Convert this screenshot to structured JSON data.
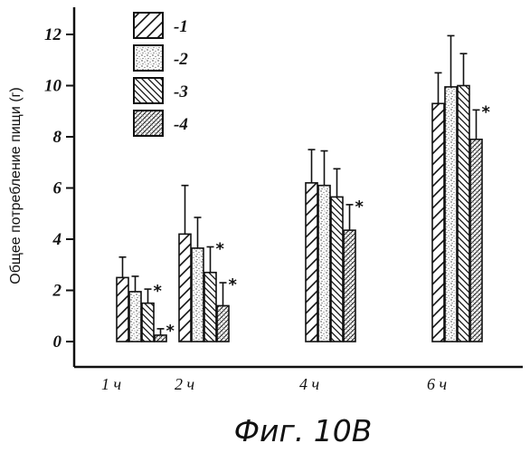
{
  "chart_data": {
    "type": "bar",
    "title": "",
    "ylabel": "Общее потребление пищи (г)",
    "xlabel": "",
    "ylim": [
      0,
      13
    ],
    "yticks": [
      0,
      2,
      4,
      6,
      8,
      10,
      12
    ],
    "categories": [
      "1 ч",
      "2 ч",
      "4 ч",
      "6 ч"
    ],
    "series": [
      {
        "name": "-1",
        "pattern": "diagonal-up",
        "values": [
          2.5,
          4.2,
          6.2,
          9.3
        ],
        "errors": [
          0.8,
          1.9,
          1.3,
          1.2
        ],
        "significant": [
          false,
          false,
          false,
          false
        ]
      },
      {
        "name": "-2",
        "pattern": "stipple",
        "values": [
          1.95,
          3.65,
          6.1,
          9.95
        ],
        "errors": [
          0.6,
          1.2,
          1.35,
          2.0
        ],
        "significant": [
          false,
          false,
          false,
          false
        ]
      },
      {
        "name": "-3",
        "pattern": "diagonal-down",
        "values": [
          1.5,
          2.7,
          5.65,
          10.0
        ],
        "errors": [
          0.55,
          1.0,
          1.1,
          1.25
        ],
        "significant": [
          true,
          true,
          false,
          false
        ]
      },
      {
        "name": "-4",
        "pattern": "cross-hatch-dense",
        "values": [
          0.25,
          1.4,
          4.35,
          7.9
        ],
        "errors": [
          0.25,
          0.9,
          1.0,
          1.15
        ],
        "significant": [
          true,
          true,
          true,
          true
        ]
      }
    ],
    "significance_marker": "*",
    "legend_position": "top-left",
    "grid": false
  },
  "caption": "Фиг. 10В"
}
